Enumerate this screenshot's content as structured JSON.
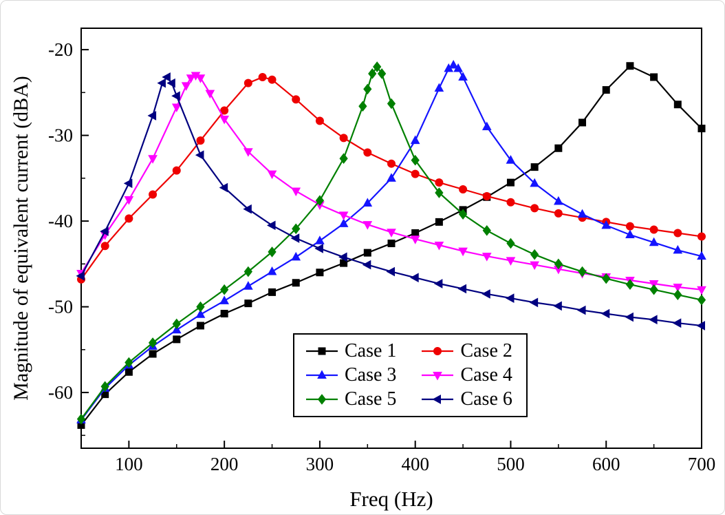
{
  "chart_data": {
    "type": "line",
    "title": "",
    "xlabel": "Freq (Hz)",
    "ylabel": "Magnitude of equivalent current (dBA)",
    "xlim": [
      50,
      700
    ],
    "ylim": [
      -66.5,
      -17.5
    ],
    "x_ticks": [
      100,
      200,
      300,
      400,
      500,
      600,
      700
    ],
    "y_ticks": [
      -20,
      -30,
      -40,
      -50,
      -60
    ],
    "x_minor_ticks": [
      150,
      250,
      350,
      450,
      550,
      650
    ],
    "y_minor_ticks": [
      -25,
      -35,
      -45,
      -55,
      -65
    ],
    "grid": false,
    "legend_position": "inside-bottom-center",
    "legend_columns": 2,
    "series": [
      {
        "name": "Case 1",
        "color": "#000000",
        "marker": "square",
        "peak_hz": 630,
        "x": [
          50,
          75,
          100,
          125,
          150,
          175,
          200,
          225,
          250,
          275,
          300,
          325,
          350,
          375,
          400,
          425,
          450,
          475,
          500,
          525,
          550,
          575,
          600,
          625,
          650,
          675,
          700
        ],
        "y": [
          -63.8,
          -60.2,
          -57.6,
          -55.5,
          -53.8,
          -52.2,
          -50.8,
          -49.6,
          -48.3,
          -47.2,
          -46.0,
          -44.9,
          -43.7,
          -42.6,
          -41.4,
          -40.1,
          -38.7,
          -37.2,
          -35.5,
          -33.7,
          -31.5,
          -28.5,
          -24.7,
          -21.9,
          -23.2,
          -26.4,
          -29.2
        ]
      },
      {
        "name": "Case 2",
        "color": "#ee0000",
        "marker": "circle",
        "peak_hz": 240,
        "x": [
          50,
          75,
          100,
          125,
          150,
          175,
          200,
          225,
          240,
          250,
          275,
          300,
          325,
          350,
          375,
          400,
          425,
          450,
          475,
          500,
          525,
          550,
          575,
          600,
          625,
          650,
          675,
          700
        ],
        "y": [
          -46.8,
          -42.9,
          -39.7,
          -36.9,
          -34.1,
          -30.6,
          -27.1,
          -23.9,
          -23.2,
          -23.5,
          -25.8,
          -28.3,
          -30.3,
          -32.0,
          -33.3,
          -34.5,
          -35.5,
          -36.3,
          -37.1,
          -37.8,
          -38.5,
          -39.1,
          -39.6,
          -40.1,
          -40.6,
          -41.0,
          -41.4,
          -41.8
        ]
      },
      {
        "name": "Case 3",
        "color": "#1414ff",
        "marker": "triangle-up",
        "peak_hz": 440,
        "x": [
          50,
          75,
          100,
          125,
          150,
          175,
          200,
          225,
          250,
          275,
          300,
          325,
          350,
          375,
          400,
          425,
          435,
          440,
          445,
          450,
          475,
          500,
          525,
          550,
          575,
          600,
          625,
          650,
          675,
          700
        ],
        "y": [
          -63.2,
          -59.5,
          -56.8,
          -54.6,
          -52.7,
          -50.9,
          -49.3,
          -47.6,
          -45.9,
          -44.2,
          -42.3,
          -40.3,
          -37.9,
          -35.0,
          -30.6,
          -24.5,
          -22.2,
          -21.8,
          -22.2,
          -23.2,
          -29.0,
          -32.9,
          -35.6,
          -37.7,
          -39.2,
          -40.5,
          -41.6,
          -42.5,
          -43.4,
          -44.1
        ]
      },
      {
        "name": "Case 4",
        "color": "#ff00ff",
        "marker": "triangle-down",
        "peak_hz": 170,
        "x": [
          50,
          75,
          100,
          125,
          150,
          160,
          165,
          170,
          175,
          185,
          200,
          225,
          250,
          275,
          300,
          325,
          350,
          375,
          400,
          425,
          450,
          475,
          500,
          525,
          550,
          575,
          600,
          625,
          650,
          675,
          700
        ],
        "y": [
          -46.1,
          -41.6,
          -37.5,
          -32.7,
          -26.7,
          -24.2,
          -23.3,
          -23.0,
          -23.3,
          -25.1,
          -28.1,
          -31.9,
          -34.5,
          -36.5,
          -38.1,
          -39.3,
          -40.4,
          -41.3,
          -42.1,
          -42.8,
          -43.5,
          -44.1,
          -44.6,
          -45.1,
          -45.6,
          -46.1,
          -46.5,
          -46.9,
          -47.3,
          -47.7,
          -48.0
        ]
      },
      {
        "name": "Case 5",
        "color": "#008000",
        "marker": "diamond",
        "peak_hz": 360,
        "x": [
          50,
          75,
          100,
          125,
          150,
          175,
          200,
          225,
          250,
          275,
          300,
          325,
          345,
          350,
          355,
          360,
          365,
          375,
          400,
          425,
          450,
          475,
          500,
          525,
          550,
          575,
          600,
          625,
          650,
          675,
          700
        ],
        "y": [
          -63.1,
          -59.3,
          -56.5,
          -54.2,
          -52.0,
          -50.0,
          -48.0,
          -45.9,
          -43.6,
          -40.9,
          -37.6,
          -32.7,
          -26.6,
          -24.6,
          -22.8,
          -22.0,
          -22.8,
          -26.3,
          -32.9,
          -36.7,
          -39.2,
          -41.1,
          -42.6,
          -43.9,
          -45.0,
          -45.9,
          -46.7,
          -47.4,
          -48.0,
          -48.6,
          -49.2
        ]
      },
      {
        "name": "Case 6",
        "color": "#000080",
        "marker": "triangle-left",
        "peak_hz": 140,
        "x": [
          50,
          75,
          100,
          125,
          135,
          140,
          145,
          150,
          175,
          200,
          225,
          250,
          275,
          300,
          325,
          350,
          375,
          400,
          425,
          450,
          475,
          500,
          525,
          550,
          575,
          600,
          625,
          650,
          675,
          700
        ],
        "y": [
          -46.4,
          -41.2,
          -35.6,
          -27.7,
          -23.9,
          -23.2,
          -23.9,
          -25.4,
          -32.3,
          -36.1,
          -38.6,
          -40.5,
          -42.0,
          -43.2,
          -44.2,
          -45.1,
          -45.9,
          -46.6,
          -47.3,
          -47.9,
          -48.5,
          -49.0,
          -49.5,
          -49.9,
          -50.4,
          -50.8,
          -51.2,
          -51.5,
          -51.9,
          -52.2
        ]
      }
    ]
  }
}
